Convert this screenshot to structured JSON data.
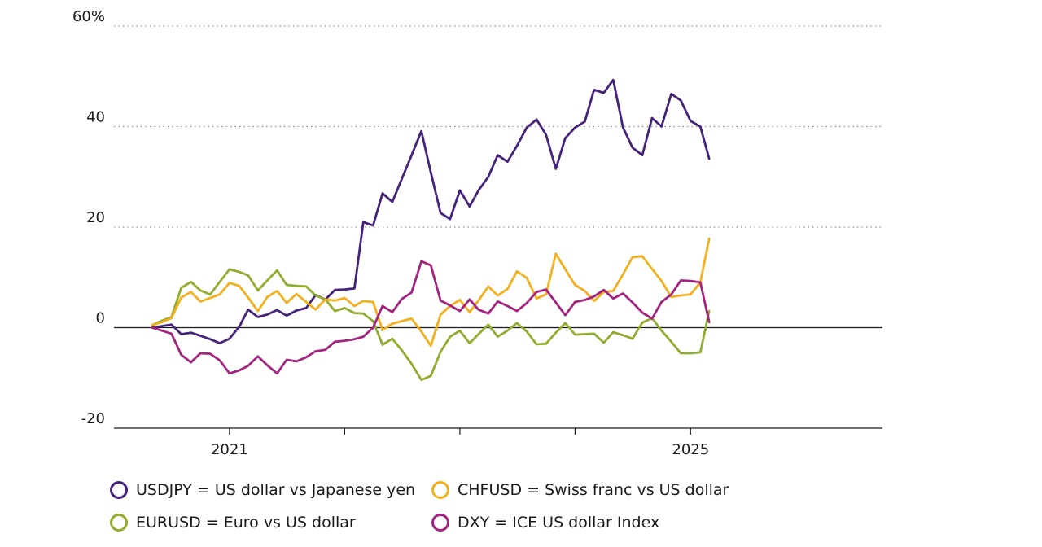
{
  "chart_data": {
    "type": "line",
    "title": "",
    "xlabel": "",
    "ylabel": "",
    "ylim": [
      -20,
      60
    ],
    "y_ticks": [
      60,
      40,
      20,
      0,
      -20
    ],
    "y_tick_labels": [
      "60%",
      "40",
      "20",
      "0",
      "-20"
    ],
    "x_tick_labels": [
      "2021",
      "2025"
    ],
    "xlim": [
      "2020-01-01",
      "2026-09-01"
    ],
    "x_major_ticks": [
      "2021-01-01",
      "2025-01-01"
    ],
    "x_minor_ticks": [
      "2022-01-01",
      "2023-01-01",
      "2024-01-01"
    ],
    "grid": "horizontal dotted",
    "legend_position": "bottom",
    "series": [
      {
        "name": "USDJPY = US dollar vs Japanese yen",
        "color": "#45237a",
        "points": [
          [
            "2020-05-01",
            0
          ],
          [
            "2020-06-01",
            0.3
          ],
          [
            "2020-07-01",
            0.6
          ],
          [
            "2020-08-01",
            -1.3
          ],
          [
            "2020-09-01",
            -1
          ],
          [
            "2020-10-01",
            -1.6
          ],
          [
            "2020-11-01",
            -2.3
          ],
          [
            "2020-12-01",
            -3.1
          ],
          [
            "2021-01-01",
            -2.2
          ],
          [
            "2021-02-01",
            0.2
          ],
          [
            "2021-03-01",
            3.6
          ],
          [
            "2021-04-01",
            2.1
          ],
          [
            "2021-05-01",
            2.6
          ],
          [
            "2021-06-01",
            3.5
          ],
          [
            "2021-07-01",
            2.4
          ],
          [
            "2021-08-01",
            3.4
          ],
          [
            "2021-09-01",
            3.9
          ],
          [
            "2021-10-01",
            6.5
          ],
          [
            "2021-11-01",
            5.6
          ],
          [
            "2021-12-01",
            7.5
          ],
          [
            "2022-01-01",
            7.6
          ],
          [
            "2022-02-01",
            7.8
          ],
          [
            "2022-03-01",
            21
          ],
          [
            "2022-04-01",
            20.3
          ],
          [
            "2022-05-01",
            26.7
          ],
          [
            "2022-06-01",
            25
          ],
          [
            "2022-07-01",
            29.6
          ],
          [
            "2022-08-01",
            34.3
          ],
          [
            "2022-09-01",
            39.1
          ],
          [
            "2022-10-01",
            30.9
          ],
          [
            "2022-11-01",
            22.8
          ],
          [
            "2022-12-01",
            21.6
          ],
          [
            "2023-01-01",
            27.3
          ],
          [
            "2023-02-01",
            24.1
          ],
          [
            "2023-03-01",
            27.3
          ],
          [
            "2023-04-01",
            30
          ],
          [
            "2023-05-01",
            34.3
          ],
          [
            "2023-06-01",
            33
          ],
          [
            "2023-07-01",
            36.2
          ],
          [
            "2023-08-01",
            39.8
          ],
          [
            "2023-09-01",
            41.4
          ],
          [
            "2023-10-01",
            38.4
          ],
          [
            "2023-11-01",
            31.6
          ],
          [
            "2023-12-01",
            37.7
          ],
          [
            "2024-01-01",
            39.8
          ],
          [
            "2024-02-01",
            41
          ],
          [
            "2024-03-01",
            47.3
          ],
          [
            "2024-04-01",
            46.7
          ],
          [
            "2024-05-01",
            49.3
          ],
          [
            "2024-06-01",
            39.8
          ],
          [
            "2024-07-01",
            35.8
          ],
          [
            "2024-08-01",
            34.3
          ],
          [
            "2024-09-01",
            41.7
          ],
          [
            "2024-10-01",
            40
          ],
          [
            "2024-11-01",
            46.5
          ],
          [
            "2024-12-01",
            45.2
          ],
          [
            "2025-01-01",
            41.1
          ],
          [
            "2025-02-01",
            40
          ],
          [
            "2025-03-01",
            33.6
          ]
        ]
      },
      {
        "name": "EURUSD = Euro vs US dollar",
        "color": "#8fad2e",
        "points": [
          [
            "2020-05-01",
            0.5
          ],
          [
            "2020-06-01",
            1.4
          ],
          [
            "2020-07-01",
            2.1
          ],
          [
            "2020-08-01",
            7.9
          ],
          [
            "2020-09-01",
            9.1
          ],
          [
            "2020-10-01",
            7.4
          ],
          [
            "2020-11-01",
            6.6
          ],
          [
            "2020-12-01",
            9.1
          ],
          [
            "2021-01-01",
            11.6
          ],
          [
            "2021-02-01",
            11.1
          ],
          [
            "2021-03-01",
            10.4
          ],
          [
            "2021-04-01",
            7.4
          ],
          [
            "2021-05-01",
            9.4
          ],
          [
            "2021-06-01",
            11.4
          ],
          [
            "2021-07-01",
            8.5
          ],
          [
            "2021-08-01",
            8.3
          ],
          [
            "2021-09-01",
            8.2
          ],
          [
            "2021-10-01",
            6.4
          ],
          [
            "2021-11-01",
            5.6
          ],
          [
            "2021-12-01",
            3.3
          ],
          [
            "2022-01-01",
            3.9
          ],
          [
            "2022-02-01",
            2.9
          ],
          [
            "2022-03-01",
            2.8
          ],
          [
            "2022-04-01",
            1.3
          ],
          [
            "2022-05-01",
            -3.4
          ],
          [
            "2022-06-01",
            -2.2
          ],
          [
            "2022-07-01",
            -4.5
          ],
          [
            "2022-08-01",
            -7.2
          ],
          [
            "2022-09-01",
            -10.4
          ],
          [
            "2022-10-01",
            -9.6
          ],
          [
            "2022-11-01",
            -4.8
          ],
          [
            "2022-12-01",
            -1.8
          ],
          [
            "2023-01-01",
            -0.6
          ],
          [
            "2023-02-01",
            -3.1
          ],
          [
            "2023-03-01",
            -1.3
          ],
          [
            "2023-04-01",
            0.6
          ],
          [
            "2023-05-01",
            -1.8
          ],
          [
            "2023-06-01",
            -0.6
          ],
          [
            "2023-07-01",
            0.9
          ],
          [
            "2023-08-01",
            -0.8
          ],
          [
            "2023-09-01",
            -3.3
          ],
          [
            "2023-10-01",
            -3.2
          ],
          [
            "2023-11-01",
            -1
          ],
          [
            "2023-12-01",
            0.9
          ],
          [
            "2024-01-01",
            -1.4
          ],
          [
            "2024-02-01",
            -1.3
          ],
          [
            "2024-03-01",
            -1.2
          ],
          [
            "2024-04-01",
            -3
          ],
          [
            "2024-05-01",
            -0.9
          ],
          [
            "2024-06-01",
            -1.5
          ],
          [
            "2024-07-01",
            -2.2
          ],
          [
            "2024-08-01",
            1
          ],
          [
            "2024-09-01",
            1.9
          ],
          [
            "2024-10-01",
            -0.6
          ],
          [
            "2024-11-01",
            -2.8
          ],
          [
            "2024-12-01",
            -5.1
          ],
          [
            "2025-01-01",
            -5.1
          ],
          [
            "2025-02-01",
            -4.9
          ],
          [
            "2025-03-01",
            3.3
          ]
        ]
      },
      {
        "name": "CHFUSD = Swiss franc vs US dollar",
        "color": "#f2b01e",
        "points": [
          [
            "2020-05-01",
            0.5
          ],
          [
            "2020-06-01",
            1.1
          ],
          [
            "2020-07-01",
            1.9
          ],
          [
            "2020-08-01",
            6
          ],
          [
            "2020-09-01",
            7.1
          ],
          [
            "2020-10-01",
            5.2
          ],
          [
            "2020-11-01",
            5.9
          ],
          [
            "2020-12-01",
            6.6
          ],
          [
            "2021-01-01",
            8.9
          ],
          [
            "2021-02-01",
            8.3
          ],
          [
            "2021-03-01",
            6
          ],
          [
            "2021-04-01",
            3.3
          ],
          [
            "2021-05-01",
            6.1
          ],
          [
            "2021-06-01",
            7.3
          ],
          [
            "2021-07-01",
            4.9
          ],
          [
            "2021-08-01",
            6.7
          ],
          [
            "2021-09-01",
            5.1
          ],
          [
            "2021-10-01",
            3.6
          ],
          [
            "2021-11-01",
            5.6
          ],
          [
            "2021-12-01",
            5.4
          ],
          [
            "2022-01-01",
            5.9
          ],
          [
            "2022-02-01",
            4.3
          ],
          [
            "2022-03-01",
            5.3
          ],
          [
            "2022-04-01",
            5.1
          ],
          [
            "2022-05-01",
            -0.5
          ],
          [
            "2022-06-01",
            0.8
          ],
          [
            "2022-07-01",
            1.3
          ],
          [
            "2022-08-01",
            1.8
          ],
          [
            "2022-09-01",
            -0.8
          ],
          [
            "2022-10-01",
            -3.6
          ],
          [
            "2022-11-01",
            2.6
          ],
          [
            "2022-12-01",
            4.3
          ],
          [
            "2023-01-01",
            5.5
          ],
          [
            "2023-02-01",
            3.1
          ],
          [
            "2023-03-01",
            5.4
          ],
          [
            "2023-04-01",
            8.2
          ],
          [
            "2023-05-01",
            6.4
          ],
          [
            "2023-06-01",
            7.7
          ],
          [
            "2023-07-01",
            11.2
          ],
          [
            "2023-08-01",
            9.9
          ],
          [
            "2023-09-01",
            5.8
          ],
          [
            "2023-10-01",
            6.6
          ],
          [
            "2023-11-01",
            14.7
          ],
          [
            "2023-12-01",
            11.6
          ],
          [
            "2024-01-01",
            8.5
          ],
          [
            "2024-02-01",
            7.3
          ],
          [
            "2024-03-01",
            5.3
          ],
          [
            "2024-04-01",
            7.1
          ],
          [
            "2024-05-01",
            7.3
          ],
          [
            "2024-06-01",
            10.6
          ],
          [
            "2024-07-01",
            14
          ],
          [
            "2024-08-01",
            14.2
          ],
          [
            "2024-09-01",
            11.7
          ],
          [
            "2024-10-01",
            9.3
          ],
          [
            "2024-11-01",
            6.1
          ],
          [
            "2024-12-01",
            6.4
          ],
          [
            "2025-01-01",
            6.6
          ],
          [
            "2025-02-01",
            9
          ],
          [
            "2025-03-01",
            17.7
          ]
        ]
      },
      {
        "name": "DXY = ICE US dollar Index",
        "color": "#a3237f",
        "points": [
          [
            "2020-05-01",
            0
          ],
          [
            "2020-06-01",
            -0.6
          ],
          [
            "2020-07-01",
            -1.2
          ],
          [
            "2020-08-01",
            -5.4
          ],
          [
            "2020-09-01",
            -6.9
          ],
          [
            "2020-10-01",
            -5.1
          ],
          [
            "2020-11-01",
            -5.2
          ],
          [
            "2020-12-01",
            -6.5
          ],
          [
            "2021-01-01",
            -9.1
          ],
          [
            "2021-02-01",
            -8.5
          ],
          [
            "2021-03-01",
            -7.6
          ],
          [
            "2021-04-01",
            -5.7
          ],
          [
            "2021-05-01",
            -7.5
          ],
          [
            "2021-06-01",
            -9.1
          ],
          [
            "2021-07-01",
            -6.4
          ],
          [
            "2021-08-01",
            -6.7
          ],
          [
            "2021-09-01",
            -5.9
          ],
          [
            "2021-10-01",
            -4.7
          ],
          [
            "2021-11-01",
            -4.4
          ],
          [
            "2021-12-01",
            -2.8
          ],
          [
            "2022-01-01",
            -2.6
          ],
          [
            "2022-02-01",
            -2.3
          ],
          [
            "2022-03-01",
            -1.8
          ],
          [
            "2022-04-01",
            0
          ],
          [
            "2022-05-01",
            4.3
          ],
          [
            "2022-06-01",
            3.1
          ],
          [
            "2022-07-01",
            5.7
          ],
          [
            "2022-08-01",
            7
          ],
          [
            "2022-09-01",
            13.2
          ],
          [
            "2022-10-01",
            12.4
          ],
          [
            "2022-11-01",
            5.4
          ],
          [
            "2022-12-01",
            4.4
          ],
          [
            "2023-01-01",
            3.3
          ],
          [
            "2023-02-01",
            5.6
          ],
          [
            "2023-03-01",
            3.6
          ],
          [
            "2023-04-01",
            2.8
          ],
          [
            "2023-05-01",
            5.2
          ],
          [
            "2023-06-01",
            4.3
          ],
          [
            "2023-07-01",
            3.3
          ],
          [
            "2023-08-01",
            4.9
          ],
          [
            "2023-09-01",
            7.1
          ],
          [
            "2023-10-01",
            7.6
          ],
          [
            "2023-11-01",
            5
          ],
          [
            "2023-12-01",
            2.5
          ],
          [
            "2024-01-01",
            5.1
          ],
          [
            "2024-02-01",
            5.5
          ],
          [
            "2024-03-01",
            6.2
          ],
          [
            "2024-04-01",
            7.5
          ],
          [
            "2024-05-01",
            5.8
          ],
          [
            "2024-06-01",
            6.8
          ],
          [
            "2024-07-01",
            5
          ],
          [
            "2024-08-01",
            3
          ],
          [
            "2024-09-01",
            1.8
          ],
          [
            "2024-10-01",
            5.1
          ],
          [
            "2024-11-01",
            6.6
          ],
          [
            "2024-12-01",
            9.4
          ],
          [
            "2025-01-01",
            9.3
          ],
          [
            "2025-02-01",
            9
          ],
          [
            "2025-03-01",
            1.1
          ]
        ]
      }
    ]
  },
  "legend_rows": [
    [
      {
        "label": "USDJPY = US dollar vs Japanese yen",
        "color": "#45237a"
      },
      {
        "label": "CHFUSD = Swiss franc vs US dollar",
        "color": "#f2b01e"
      }
    ],
    [
      {
        "label": "EURUSD = Euro vs US dollar",
        "color": "#8fad2e"
      },
      {
        "label": "DXY = ICE US dollar Index",
        "color": "#a3237f"
      }
    ]
  ]
}
